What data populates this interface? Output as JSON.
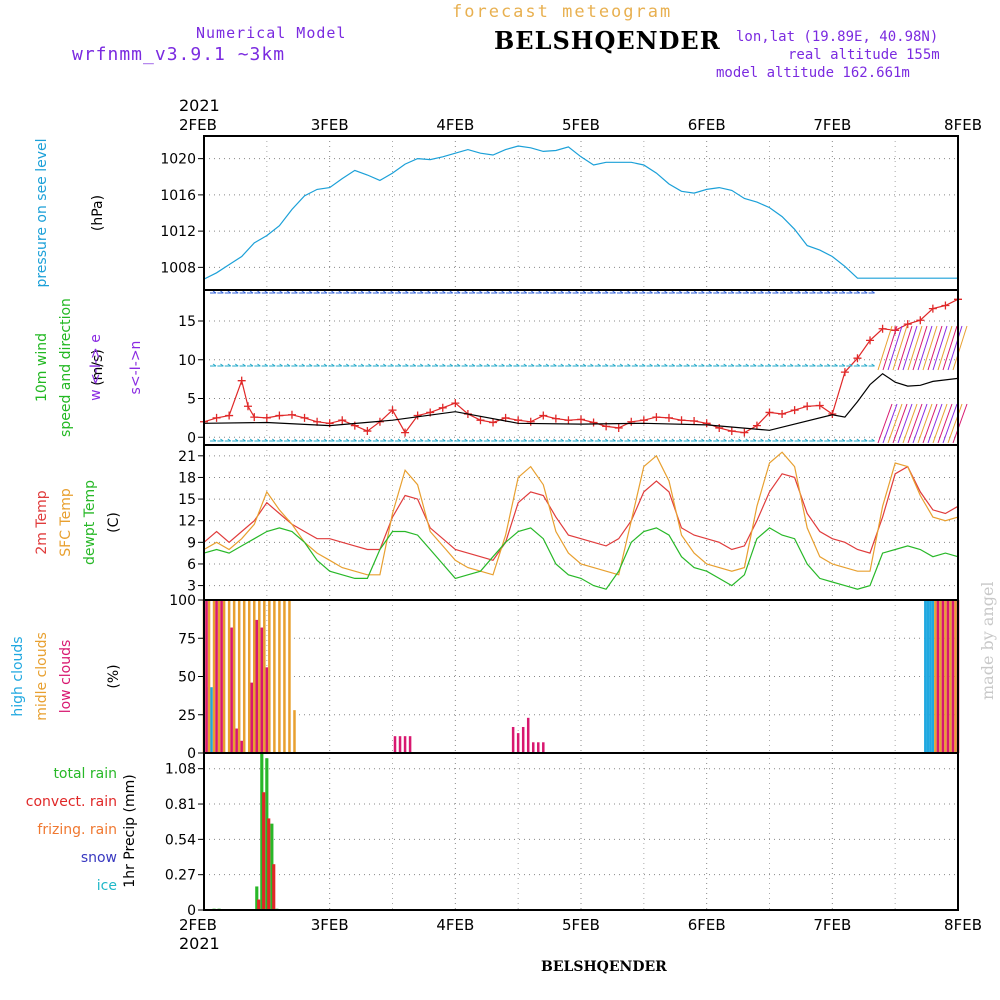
{
  "header": {
    "model_label": "Numerical Model",
    "model_version": "wrfnmm_v3.9.1   ~3km",
    "chart_title": "forecast meteogram",
    "station": "BELSHQENDER",
    "coords": "lon,lat (19.89E, 40.98N)",
    "real_altitude": "real altitude 155m",
    "model_altitude": "model altitude  162.661m",
    "year": "2021",
    "footer_station": "BELSHQENDER",
    "credit": "made by angel"
  },
  "colors": {
    "pressure": "#1ba0d8",
    "wind_label": "#22b822",
    "wind_dir_label": "#8a2be2",
    "wind_speed": "#e02828",
    "wind_gust": "#000000",
    "t2m": "#e03c3c",
    "tsfc": "#e8a030",
    "dewpt": "#28b828",
    "high_clouds": "#20a8e0",
    "middle_clouds": "#e8a030",
    "low_clouds": "#d81870",
    "total_rain": "#28b828",
    "convect_rain": "#e02828",
    "frizing_rain": "#f07830",
    "snow": "#3838c0",
    "ice": "#20b8c8"
  },
  "chart_data": {
    "type": "line",
    "x_ticks": [
      "2FEB",
      "3FEB",
      "4FEB",
      "5FEB",
      "6FEB",
      "7FEB",
      "8FEB"
    ],
    "xlim": [
      0,
      6
    ],
    "panels": [
      {
        "id": "pressure",
        "labels": [
          "pressure on see level",
          "(hPa)"
        ],
        "ylim": [
          1005.5,
          1022.5
        ],
        "yticks": [
          1008,
          1012,
          1016,
          1020
        ],
        "series": [
          {
            "name": "pressure on see level",
            "color": "#1ba0d8",
            "x": [
              0,
              0.1,
              0.2,
              0.3,
              0.4,
              0.5,
              0.6,
              0.7,
              0.8,
              0.9,
              1.0,
              1.1,
              1.2,
              1.3,
              1.4,
              1.5,
              1.6,
              1.7,
              1.8,
              1.9,
              2.0,
              2.1,
              2.2,
              2.3,
              2.4,
              2.5,
              2.6,
              2.7,
              2.8,
              2.9,
              3.0,
              3.1,
              3.2,
              3.3,
              3.4,
              3.5,
              3.6,
              3.7,
              3.8,
              3.9,
              4.0,
              4.1,
              4.2,
              4.3,
              4.4,
              4.5,
              4.6,
              4.7,
              4.8,
              4.9,
              5.0,
              5.1,
              5.2,
              5.3,
              5.4,
              5.5,
              5.6,
              5.7,
              5.8,
              5.9,
              6.0
            ],
            "y": [
              1006.7,
              1007.4,
              1008.3,
              1009.2,
              1010.7,
              1011.5,
              1012.6,
              1014.4,
              1015.9,
              1016.6,
              1016.8,
              1017.8,
              1018.7,
              1018.2,
              1017.6,
              1018.4,
              1019.4,
              1020.0,
              1019.9,
              1020.2,
              1020.6,
              1021.0,
              1020.6,
              1020.4,
              1021.0,
              1021.4,
              1021.2,
              1020.8,
              1020.9,
              1021.3,
              1020.2,
              1019.3,
              1019.6,
              1019.6,
              1019.6,
              1019.3,
              1018.4,
              1017.2,
              1016.4,
              1016.2,
              1016.6,
              1016.8,
              1016.5,
              1015.6,
              1015.2,
              1014.6,
              1013.6,
              1012.2,
              1010.4,
              1009.9,
              1009.2,
              1008.1,
              1006.8,
              1006.8,
              1006.8,
              1006.8,
              1006.8,
              1006.8,
              1006.8,
              1006.8,
              1006.8
            ]
          }
        ]
      },
      {
        "id": "wind",
        "labels": [
          "10m wind",
          "speed and direction",
          "(m/s)",
          "w  <-I->  e",
          "s<-I->n"
        ],
        "ylim": [
          -1,
          19
        ],
        "yticks": [
          0,
          5,
          10,
          15
        ],
        "series": [
          {
            "name": "10m wind speed",
            "color": "#e02828",
            "x": [
              0,
              0.1,
              0.2,
              0.3,
              0.35,
              0.4,
              0.5,
              0.6,
              0.7,
              0.8,
              0.9,
              1.0,
              1.1,
              1.2,
              1.3,
              1.4,
              1.5,
              1.6,
              1.7,
              1.8,
              1.9,
              2.0,
              2.1,
              2.2,
              2.3,
              2.4,
              2.5,
              2.6,
              2.7,
              2.8,
              2.9,
              3.0,
              3.1,
              3.2,
              3.3,
              3.4,
              3.5,
              3.6,
              3.7,
              3.8,
              3.9,
              4.0,
              4.1,
              4.2,
              4.3,
              4.4,
              4.5,
              4.6,
              4.7,
              4.8,
              4.9,
              5.0,
              5.1,
              5.2,
              5.3,
              5.4,
              5.5,
              5.6,
              5.7,
              5.8,
              5.9,
              6.0
            ],
            "y": [
              2.0,
              2.5,
              2.8,
              7.3,
              4.0,
              2.6,
              2.5,
              2.8,
              2.9,
              2.5,
              2.0,
              1.8,
              2.2,
              1.5,
              0.8,
              2.0,
              3.5,
              0.6,
              2.8,
              3.2,
              3.8,
              4.4,
              3.0,
              2.2,
              1.9,
              2.5,
              2.2,
              2.0,
              2.8,
              2.4,
              2.2,
              2.3,
              1.9,
              1.4,
              1.2,
              2.0,
              2.2,
              2.6,
              2.5,
              2.2,
              2.1,
              1.8,
              1.2,
              0.8,
              0.6,
              1.5,
              3.2,
              3.0,
              3.5,
              4.0,
              4.1,
              3.0,
              8.4,
              10.2,
              12.5,
              14.0,
              13.8,
              14.6,
              15.1,
              16.6,
              17.0,
              17.8
            ]
          },
          {
            "name": "10m wind gust",
            "color": "#000000",
            "x": [
              0,
              0.5,
              1.0,
              1.5,
              2.0,
              2.5,
              3.0,
              3.5,
              4.0,
              4.5,
              5.0,
              5.1,
              5.2,
              5.3,
              5.4,
              5.5,
              5.6,
              5.7,
              5.8,
              5.9,
              6.0
            ],
            "y": [
              1.8,
              1.9,
              1.5,
              2.2,
              3.3,
              1.8,
              1.7,
              1.8,
              1.6,
              0.9,
              2.9,
              2.6,
              4.6,
              6.8,
              8.2,
              7.1,
              6.6,
              6.7,
              7.2,
              7.4,
              7.6
            ]
          }
        ]
      },
      {
        "id": "temperature",
        "labels": [
          "2m Temp",
          "SFC Temp",
          "dewpt Temp",
          "(C)"
        ],
        "ylim": [
          1,
          22.5
        ],
        "yticks": [
          3,
          6,
          9,
          12,
          15,
          18,
          21
        ],
        "series": [
          {
            "name": "2m Temp",
            "color": "#e03c3c",
            "x": [
              0,
              0.1,
              0.2,
              0.3,
              0.4,
              0.5,
              0.6,
              0.7,
              0.8,
              0.9,
              1.0,
              1.1,
              1.2,
              1.3,
              1.4,
              1.5,
              1.6,
              1.7,
              1.8,
              1.9,
              2.0,
              2.1,
              2.2,
              2.3,
              2.4,
              2.5,
              2.6,
              2.7,
              2.8,
              2.9,
              3.0,
              3.1,
              3.2,
              3.3,
              3.4,
              3.5,
              3.6,
              3.7,
              3.8,
              3.9,
              4.0,
              4.1,
              4.2,
              4.3,
              4.4,
              4.5,
              4.6,
              4.7,
              4.8,
              4.9,
              5.0,
              5.1,
              5.2,
              5.3,
              5.4,
              5.5,
              5.6,
              5.7,
              5.8,
              5.9,
              6.0
            ],
            "y": [
              9.0,
              10.5,
              9.0,
              10.5,
              12.0,
              14.5,
              13.0,
              11.5,
              10.5,
              9.5,
              9.5,
              9.0,
              8.5,
              8.0,
              8.0,
              12.5,
              15.5,
              15.0,
              11.0,
              9.5,
              8.0,
              7.5,
              7.0,
              6.5,
              9.0,
              14.5,
              16.0,
              15.5,
              12.5,
              10.0,
              9.5,
              9.0,
              8.5,
              9.5,
              12.0,
              16.0,
              17.5,
              16.0,
              11.0,
              10.0,
              9.5,
              9.0,
              8.0,
              8.5,
              12.0,
              16.0,
              18.5,
              18.0,
              13.0,
              10.5,
              9.5,
              9.0,
              8.0,
              7.5,
              12.5,
              18.5,
              19.5,
              16.0,
              13.5,
              13.0,
              14.0
            ]
          },
          {
            "name": "SFC Temp",
            "color": "#e8a030",
            "x": [
              0,
              0.1,
              0.2,
              0.3,
              0.4,
              0.5,
              0.6,
              0.7,
              0.8,
              0.9,
              1.0,
              1.1,
              1.2,
              1.3,
              1.4,
              1.5,
              1.6,
              1.7,
              1.8,
              1.9,
              2.0,
              2.1,
              2.2,
              2.3,
              2.4,
              2.5,
              2.6,
              2.7,
              2.8,
              2.9,
              3.0,
              3.1,
              3.2,
              3.3,
              3.4,
              3.5,
              3.6,
              3.7,
              3.8,
              3.9,
              4.0,
              4.1,
              4.2,
              4.3,
              4.4,
              4.5,
              4.6,
              4.7,
              4.8,
              4.9,
              5.0,
              5.1,
              5.2,
              5.3,
              5.4,
              5.5,
              5.6,
              5.7,
              5.8,
              5.9,
              6.0
            ],
            "y": [
              8.0,
              9.0,
              8.0,
              9.5,
              11.5,
              16.0,
              13.5,
              11.5,
              9.0,
              7.5,
              6.5,
              5.5,
              5.0,
              4.5,
              4.5,
              13.0,
              19.0,
              17.0,
              10.5,
              8.5,
              6.5,
              5.5,
              5.0,
              4.5,
              10.0,
              18.0,
              19.5,
              17.0,
              10.5,
              7.5,
              6.0,
              5.5,
              5.0,
              4.5,
              12.0,
              19.5,
              21.0,
              17.5,
              10.0,
              7.5,
              6.0,
              5.5,
              5.0,
              5.5,
              14.0,
              20.0,
              21.5,
              19.5,
              11.0,
              7.0,
              6.0,
              5.5,
              5.0,
              5.0,
              14.0,
              20.0,
              19.5,
              15.5,
              12.5,
              12.0,
              12.5
            ]
          },
          {
            "name": "dewpt Temp",
            "color": "#28b828",
            "x": [
              0,
              0.1,
              0.2,
              0.3,
              0.4,
              0.5,
              0.6,
              0.7,
              0.8,
              0.9,
              1.0,
              1.1,
              1.2,
              1.3,
              1.4,
              1.5,
              1.6,
              1.7,
              1.8,
              1.9,
              2.0,
              2.1,
              2.2,
              2.3,
              2.4,
              2.5,
              2.6,
              2.7,
              2.8,
              2.9,
              3.0,
              3.1,
              3.2,
              3.3,
              3.4,
              3.5,
              3.6,
              3.7,
              3.8,
              3.9,
              4.0,
              4.1,
              4.2,
              4.3,
              4.4,
              4.5,
              4.6,
              4.7,
              4.8,
              4.9,
              5.0,
              5.1,
              5.2,
              5.3,
              5.4,
              5.5,
              5.6,
              5.7,
              5.8,
              5.9,
              6.0
            ],
            "y": [
              7.5,
              8.0,
              7.5,
              8.5,
              9.5,
              10.5,
              11.0,
              10.5,
              9.0,
              6.5,
              5.0,
              4.5,
              4.0,
              4.0,
              8.0,
              10.5,
              10.5,
              10.0,
              8.0,
              6.0,
              4.0,
              4.5,
              5.0,
              7.0,
              9.0,
              10.5,
              11.0,
              9.5,
              6.0,
              4.5,
              4.0,
              3.0,
              2.5,
              5.0,
              9.0,
              10.5,
              11.0,
              10.0,
              7.0,
              5.5,
              5.0,
              4.0,
              3.0,
              4.5,
              9.5,
              11.0,
              10.0,
              9.5,
              6.0,
              4.0,
              3.5,
              3.0,
              2.5,
              3.0,
              7.5,
              8.0,
              8.5,
              8.0,
              7.0,
              7.5,
              7.0
            ]
          }
        ]
      },
      {
        "id": "clouds",
        "labels": [
          "high  clouds",
          "midle clouds",
          "low   clouds",
          "(%)"
        ],
        "ylim": [
          0,
          100
        ],
        "yticks": [
          0,
          25,
          50,
          75,
          100
        ],
        "bar_width_days": 0.02,
        "series": [
          {
            "name": "high  clouds",
            "color": "#20a8e0",
            "x": [
              0.04,
              0.06,
              5.74,
              5.76,
              5.78,
              5.8
            ],
            "y": [
              43,
              43,
              100,
              100,
              100,
              100
            ]
          },
          {
            "name": "midle clouds",
            "color": "#e8a030",
            "x": [
              0.0,
              0.04,
              0.08,
              0.12,
              0.16,
              0.2,
              0.24,
              0.28,
              0.32,
              0.36,
              0.4,
              0.44,
              0.48,
              0.52,
              0.56,
              0.6,
              0.64,
              0.68,
              0.72,
              5.82,
              5.86,
              5.9,
              5.94,
              5.98
            ],
            "y": [
              100,
              100,
              100,
              100,
              100,
              100,
              100,
              100,
              100,
              100,
              100,
              100,
              100,
              100,
              100,
              100,
              100,
              100,
              28,
              100,
              100,
              100,
              100,
              100
            ]
          },
          {
            "name": "low   clouds",
            "color": "#d81870",
            "x": [
              0.02,
              0.1,
              0.14,
              0.22,
              0.26,
              0.3,
              0.38,
              0.42,
              0.46,
              0.5,
              1.52,
              1.56,
              1.6,
              1.64,
              2.46,
              2.5,
              2.54,
              2.58,
              2.62,
              2.66,
              2.7,
              5.84,
              5.88,
              5.92,
              5.96,
              6.0
            ],
            "y": [
              100,
              100,
              100,
              82,
              16,
              8,
              46,
              87,
              82,
              56,
              11,
              11,
              11,
              11,
              17,
              13,
              17,
              23,
              7,
              7,
              7,
              100,
              100,
              100,
              100,
              100
            ]
          }
        ]
      },
      {
        "id": "precip",
        "labels": [
          "total      rain",
          "convect. rain",
          "frizing. rain",
          "snow",
          "ice",
          "1hr Precip (mm)"
        ],
        "ylim": [
          0,
          1.2
        ],
        "yticks": [
          0,
          0.27,
          0.54,
          0.81,
          1.08
        ],
        "bar_width_days": 0.025,
        "series": [
          {
            "name": "total      rain",
            "color": "#28b828",
            "x": [
              0.08,
              0.12,
              0.42,
              0.46,
              0.5,
              0.54,
              0.58
            ],
            "y": [
              0.01,
              0.01,
              0.18,
              1.2,
              1.16,
              0.66,
              0.01
            ]
          },
          {
            "name": "convect. rain",
            "color": "#e02828",
            "x": [
              0.435,
              0.475,
              0.515,
              0.555
            ],
            "y": [
              0.08,
              0.9,
              0.7,
              0.35
            ]
          }
        ]
      }
    ]
  }
}
